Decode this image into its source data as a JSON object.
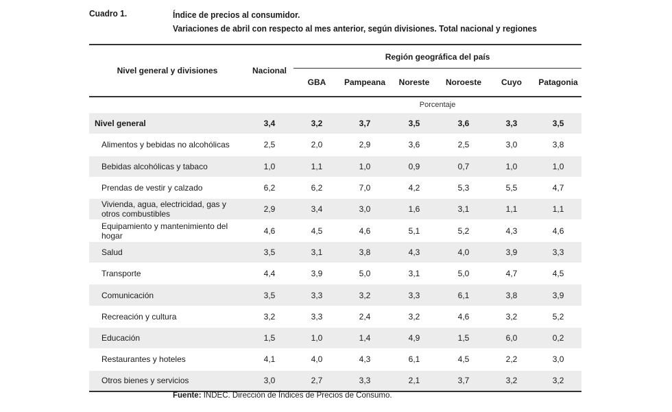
{
  "caption": {
    "number": "Cuadro 1.",
    "title_line1": "Índice de precios al consumidor.",
    "title_line2": "Variaciones de abril con respecto al mes anterior, según divisiones. Total nacional y regiones"
  },
  "table": {
    "header": {
      "divisions": "Nivel general y divisiones",
      "national": "Nacional",
      "region_group": "Región geográfica del país",
      "regions": [
        "GBA",
        "Pampeana",
        "Noreste",
        "Noroeste",
        "Cuyo",
        "Patagonia"
      ]
    },
    "unit": "Porcentaje",
    "rows": [
      {
        "label": "Nivel general",
        "values": [
          "3,4",
          "3,2",
          "3,7",
          "3,5",
          "3,6",
          "3,3",
          "3,5"
        ]
      },
      {
        "label": "Alimentos y bebidas no alcohólicas",
        "values": [
          "2,5",
          "2,0",
          "2,9",
          "3,6",
          "2,5",
          "3,0",
          "3,8"
        ]
      },
      {
        "label": "Bebidas alcohólicas y tabaco",
        "values": [
          "1,0",
          "1,1",
          "1,0",
          "0,9",
          "0,7",
          "1,0",
          "1,0"
        ]
      },
      {
        "label": "Prendas de vestir y calzado",
        "values": [
          "6,2",
          "6,2",
          "7,0",
          "4,2",
          "5,3",
          "5,5",
          "4,7"
        ]
      },
      {
        "label": "Vivienda, agua, electricidad, gas y otros combustibles",
        "values": [
          "2,9",
          "3,4",
          "3,0",
          "1,6",
          "3,1",
          "1,1",
          "1,1"
        ]
      },
      {
        "label": "Equipamiento y mantenimiento del hogar",
        "values": [
          "4,6",
          "4,5",
          "4,6",
          "5,1",
          "5,2",
          "4,3",
          "4,6"
        ]
      },
      {
        "label": "Salud",
        "values": [
          "3,5",
          "3,1",
          "3,8",
          "4,3",
          "4,0",
          "3,9",
          "3,3"
        ]
      },
      {
        "label": "Transporte",
        "values": [
          "4,4",
          "3,9",
          "5,0",
          "3,1",
          "5,0",
          "4,7",
          "4,5"
        ]
      },
      {
        "label": "Comunicación",
        "values": [
          "3,5",
          "3,3",
          "3,2",
          "3,3",
          "6,1",
          "3,8",
          "3,9"
        ]
      },
      {
        "label": "Recreación y cultura",
        "values": [
          "3,2",
          "3,3",
          "2,4",
          "3,2",
          "4,6",
          "3,2",
          "5,2"
        ]
      },
      {
        "label": "Educación",
        "values": [
          "1,5",
          "1,0",
          "1,4",
          "4,9",
          "1,5",
          "6,0",
          "0,2"
        ]
      },
      {
        "label": "Restaurantes y hoteles",
        "values": [
          "4,1",
          "4,0",
          "4,3",
          "6,1",
          "4,5",
          "2,2",
          "3,0"
        ]
      },
      {
        "label": "Otros bienes y servicios",
        "values": [
          "3,0",
          "2,7",
          "3,3",
          "2,1",
          "3,7",
          "3,2",
          "3,2"
        ]
      }
    ]
  },
  "source": {
    "label": "Fuente:",
    "text": "INDEC. Dirección de Índices de Precios de Consumo."
  }
}
